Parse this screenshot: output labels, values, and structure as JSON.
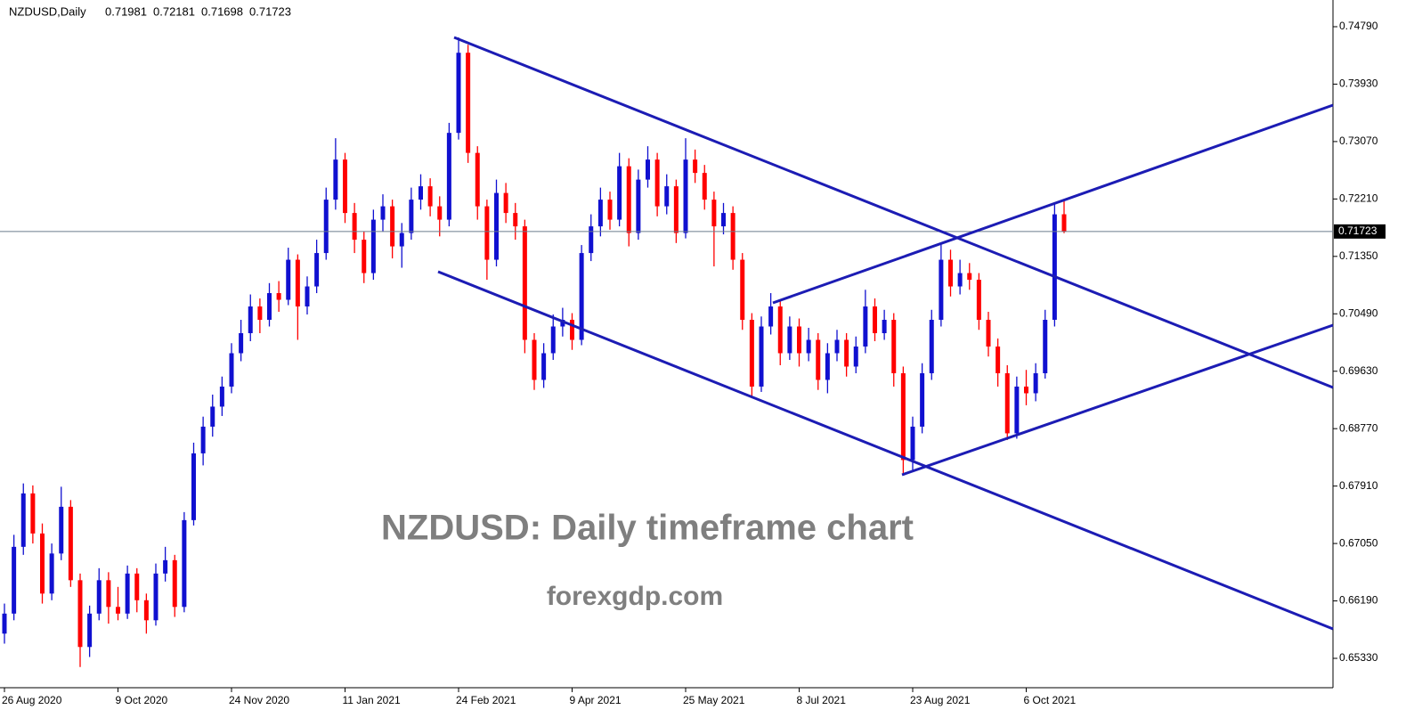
{
  "chart_data": {
    "type": "candlestick",
    "symbol": "NZDUSD,Daily",
    "title": "NZDUSD: Daily timeframe chart",
    "subtitle": "forexgdp.com",
    "up_color": "#1010d0",
    "down_color": "#ff0000",
    "ylim": [
      0.6489,
      0.7519
    ],
    "yticks": [
      {
        "value": 0.7479,
        "label": "0.74790"
      },
      {
        "value": 0.7393,
        "label": "0.73930"
      },
      {
        "value": 0.7307,
        "label": "0.73070"
      },
      {
        "value": 0.7221,
        "label": "0.72210"
      },
      {
        "value": 0.7135,
        "label": "0.71350"
      },
      {
        "value": 0.7049,
        "label": "0.70490"
      },
      {
        "value": 0.6963,
        "label": "0.69630"
      },
      {
        "value": 0.6877,
        "label": "0.68770"
      },
      {
        "value": 0.6791,
        "label": "0.67910"
      },
      {
        "value": 0.6705,
        "label": "0.67050"
      },
      {
        "value": 0.6619,
        "label": "0.66190"
      },
      {
        "value": 0.6533,
        "label": "0.65330"
      }
    ],
    "categories": [
      "26 Aug 2020",
      null,
      null,
      null,
      null,
      null,
      null,
      null,
      null,
      null,
      null,
      null,
      "9 Oct 2020",
      null,
      null,
      null,
      null,
      null,
      null,
      null,
      null,
      null,
      null,
      null,
      "24 Nov 2020",
      null,
      null,
      null,
      null,
      null,
      null,
      null,
      null,
      null,
      null,
      null,
      "11 Jan 2021",
      null,
      null,
      null,
      null,
      null,
      null,
      null,
      null,
      null,
      null,
      null,
      "24 Feb 2021",
      null,
      null,
      null,
      null,
      null,
      null,
      null,
      null,
      null,
      null,
      null,
      "9 Apr 2021",
      null,
      null,
      null,
      null,
      null,
      null,
      null,
      null,
      null,
      null,
      null,
      "25 May 2021",
      null,
      null,
      null,
      null,
      null,
      null,
      null,
      null,
      null,
      null,
      null,
      "8 Jul 2021",
      null,
      null,
      null,
      null,
      null,
      null,
      null,
      null,
      null,
      null,
      null,
      "23 Aug 2021",
      null,
      null,
      null,
      null,
      null,
      null,
      null,
      null,
      null,
      null,
      null,
      "6 Oct 2021",
      null,
      null,
      null,
      null
    ],
    "ohlc": [
      [
        0.657,
        0.6615,
        0.6555,
        0.66
      ],
      [
        0.66,
        0.6718,
        0.659,
        0.67
      ],
      [
        0.67,
        0.6795,
        0.6688,
        0.678
      ],
      [
        0.678,
        0.6792,
        0.6705,
        0.672
      ],
      [
        0.672,
        0.6735,
        0.6615,
        0.663
      ],
      [
        0.663,
        0.6705,
        0.662,
        0.669
      ],
      [
        0.669,
        0.679,
        0.668,
        0.676
      ],
      [
        0.676,
        0.677,
        0.664,
        0.665
      ],
      [
        0.665,
        0.666,
        0.652,
        0.655
      ],
      [
        0.655,
        0.6612,
        0.6535,
        0.66
      ],
      [
        0.66,
        0.6668,
        0.659,
        0.665
      ],
      [
        0.665,
        0.6662,
        0.6585,
        0.661
      ],
      [
        0.661,
        0.664,
        0.659,
        0.66
      ],
      [
        0.66,
        0.6672,
        0.6592,
        0.666
      ],
      [
        0.666,
        0.6668,
        0.6602,
        0.662
      ],
      [
        0.662,
        0.663,
        0.657,
        0.659
      ],
      [
        0.659,
        0.6675,
        0.6582,
        0.666
      ],
      [
        0.666,
        0.67,
        0.6648,
        0.668
      ],
      [
        0.668,
        0.6688,
        0.6595,
        0.661
      ],
      [
        0.661,
        0.6752,
        0.6602,
        0.674
      ],
      [
        0.674,
        0.6856,
        0.6732,
        0.684
      ],
      [
        0.684,
        0.6895,
        0.6822,
        0.688
      ],
      [
        0.688,
        0.6928,
        0.6865,
        0.691
      ],
      [
        0.691,
        0.6955,
        0.6896,
        0.694
      ],
      [
        0.694,
        0.7005,
        0.693,
        0.699
      ],
      [
        0.699,
        0.704,
        0.6978,
        0.702
      ],
      [
        0.702,
        0.7078,
        0.7008,
        0.706
      ],
      [
        0.706,
        0.7072,
        0.702,
        0.704
      ],
      [
        0.704,
        0.7095,
        0.703,
        0.708
      ],
      [
        0.708,
        0.7098,
        0.7052,
        0.707
      ],
      [
        0.707,
        0.7148,
        0.7062,
        0.713
      ],
      [
        0.713,
        0.7138,
        0.701,
        0.706
      ],
      [
        0.706,
        0.7105,
        0.7048,
        0.709
      ],
      [
        0.709,
        0.716,
        0.708,
        0.714
      ],
      [
        0.714,
        0.7238,
        0.713,
        0.722
      ],
      [
        0.722,
        0.7312,
        0.7205,
        0.728
      ],
      [
        0.728,
        0.729,
        0.7185,
        0.72
      ],
      [
        0.72,
        0.7215,
        0.714,
        0.716
      ],
      [
        0.716,
        0.7172,
        0.7095,
        0.711
      ],
      [
        0.711,
        0.7205,
        0.71,
        0.719
      ],
      [
        0.719,
        0.7228,
        0.7172,
        0.721
      ],
      [
        0.721,
        0.722,
        0.7132,
        0.715
      ],
      [
        0.715,
        0.7185,
        0.7118,
        0.717
      ],
      [
        0.717,
        0.7238,
        0.716,
        0.722
      ],
      [
        0.722,
        0.7258,
        0.7205,
        0.724
      ],
      [
        0.724,
        0.7252,
        0.7195,
        0.721
      ],
      [
        0.721,
        0.7225,
        0.7165,
        0.719
      ],
      [
        0.719,
        0.7335,
        0.718,
        0.732
      ],
      [
        0.732,
        0.7463,
        0.731,
        0.744
      ],
      [
        0.744,
        0.7452,
        0.7275,
        0.729
      ],
      [
        0.729,
        0.73,
        0.719,
        0.721
      ],
      [
        0.721,
        0.722,
        0.71,
        0.713
      ],
      [
        0.713,
        0.725,
        0.712,
        0.723
      ],
      [
        0.723,
        0.7245,
        0.7185,
        0.72
      ],
      [
        0.72,
        0.7215,
        0.716,
        0.718
      ],
      [
        0.718,
        0.719,
        0.699,
        0.701
      ],
      [
        0.701,
        0.702,
        0.6935,
        0.695
      ],
      [
        0.695,
        0.7005,
        0.6938,
        0.699
      ],
      [
        0.699,
        0.7048,
        0.698,
        0.703
      ],
      [
        0.703,
        0.7058,
        0.7015,
        0.704
      ],
      [
        0.704,
        0.705,
        0.6995,
        0.701
      ],
      [
        0.701,
        0.7152,
        0.7002,
        0.714
      ],
      [
        0.714,
        0.7198,
        0.7128,
        0.718
      ],
      [
        0.718,
        0.7238,
        0.7165,
        0.722
      ],
      [
        0.722,
        0.7232,
        0.7175,
        0.719
      ],
      [
        0.719,
        0.729,
        0.718,
        0.727
      ],
      [
        0.727,
        0.7282,
        0.715,
        0.717
      ],
      [
        0.717,
        0.7265,
        0.716,
        0.725
      ],
      [
        0.725,
        0.73,
        0.7238,
        0.728
      ],
      [
        0.728,
        0.729,
        0.7195,
        0.721
      ],
      [
        0.721,
        0.7258,
        0.7198,
        0.724
      ],
      [
        0.724,
        0.725,
        0.7155,
        0.717
      ],
      [
        0.717,
        0.7312,
        0.7162,
        0.728
      ],
      [
        0.728,
        0.7295,
        0.7245,
        0.726
      ],
      [
        0.726,
        0.7272,
        0.7205,
        0.722
      ],
      [
        0.722,
        0.7232,
        0.712,
        0.718
      ],
      [
        0.718,
        0.7215,
        0.7168,
        0.72
      ],
      [
        0.72,
        0.721,
        0.7115,
        0.713
      ],
      [
        0.713,
        0.714,
        0.7025,
        0.704
      ],
      [
        0.704,
        0.705,
        0.6925,
        0.694
      ],
      [
        0.694,
        0.7045,
        0.6932,
        0.703
      ],
      [
        0.703,
        0.708,
        0.7018,
        0.706
      ],
      [
        0.706,
        0.707,
        0.6972,
        0.699
      ],
      [
        0.699,
        0.7045,
        0.698,
        0.703
      ],
      [
        0.703,
        0.7042,
        0.697,
        0.699
      ],
      [
        0.699,
        0.7028,
        0.6978,
        0.701
      ],
      [
        0.701,
        0.702,
        0.6935,
        0.695
      ],
      [
        0.695,
        0.7005,
        0.693,
        0.699
      ],
      [
        0.699,
        0.7025,
        0.6978,
        0.701
      ],
      [
        0.701,
        0.702,
        0.6955,
        0.697
      ],
      [
        0.697,
        0.7015,
        0.696,
        0.7
      ],
      [
        0.7,
        0.7085,
        0.699,
        0.706
      ],
      [
        0.706,
        0.7072,
        0.7008,
        0.702
      ],
      [
        0.702,
        0.7055,
        0.701,
        0.704
      ],
      [
        0.704,
        0.705,
        0.694,
        0.696
      ],
      [
        0.696,
        0.697,
        0.6808,
        0.683
      ],
      [
        0.683,
        0.6895,
        0.6815,
        0.688
      ],
      [
        0.688,
        0.6975,
        0.687,
        0.696
      ],
      [
        0.696,
        0.7055,
        0.695,
        0.704
      ],
      [
        0.704,
        0.7155,
        0.703,
        0.713
      ],
      [
        0.713,
        0.7145,
        0.7075,
        0.709
      ],
      [
        0.709,
        0.713,
        0.7078,
        0.711
      ],
      [
        0.711,
        0.7125,
        0.7085,
        0.71
      ],
      [
        0.71,
        0.711,
        0.7025,
        0.704
      ],
      [
        0.704,
        0.7052,
        0.6985,
        0.7
      ],
      [
        0.7,
        0.7012,
        0.694,
        0.696
      ],
      [
        0.696,
        0.6972,
        0.686,
        0.687
      ],
      [
        0.687,
        0.6955,
        0.6862,
        0.694
      ],
      [
        0.694,
        0.6965,
        0.6912,
        0.693
      ],
      [
        0.693,
        0.6975,
        0.6918,
        0.696
      ],
      [
        0.696,
        0.7055,
        0.6952,
        0.704
      ],
      [
        0.704,
        0.7215,
        0.703,
        0.7198
      ],
      [
        0.71981,
        0.72181,
        0.71698,
        0.71723
      ]
    ]
  }
}
